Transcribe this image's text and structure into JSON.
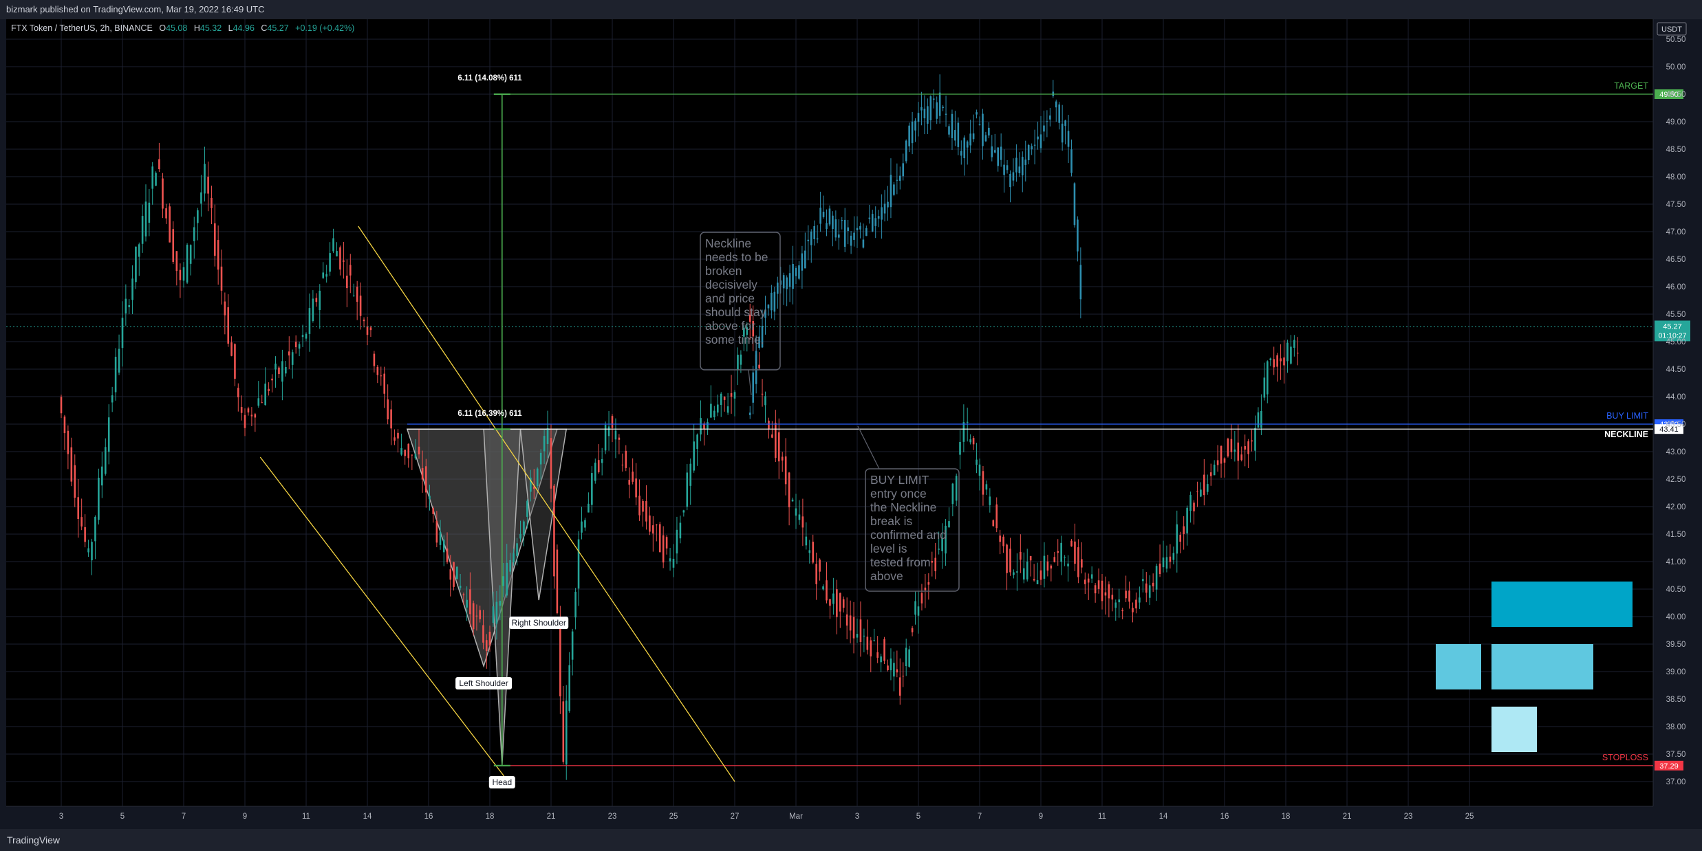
{
  "header": {
    "published": "bizmark published on TradingView.com, Mar 19, 2022 16:49 UTC"
  },
  "legend": {
    "symbol": "FTX Token / TetherUS, 2h, BINANCE",
    "o_label": "O",
    "o": "45.08",
    "h_label": "H",
    "h": "45.32",
    "l_label": "L",
    "l": "44.96",
    "c_label": "C",
    "c": "45.27",
    "change": "+0.19 (+0.42%)"
  },
  "footer": {
    "brand": "TradingView"
  },
  "colors": {
    "bg": "#000000",
    "up": "#26a69a",
    "down": "#ef5350",
    "projection": "#2e8fb0",
    "target": "#4caf50",
    "stop": "#f23645",
    "buylimit": "#2962ff",
    "neckline": "#ffffff",
    "wedge": "#f5d442"
  },
  "chart_data": {
    "type": "candlestick",
    "currency": "USDT",
    "ylim": [
      36.5,
      50.6
    ],
    "yticks": [
      "50.50",
      "50.00",
      "49.50",
      "49.00",
      "48.50",
      "48.00",
      "47.50",
      "47.00",
      "46.50",
      "46.00",
      "45.50",
      "45.00",
      "44.50",
      "44.00",
      "43.50",
      "43.00",
      "42.50",
      "42.00",
      "41.50",
      "41.00",
      "40.50",
      "40.00",
      "39.50",
      "39.00",
      "38.50",
      "38.00",
      "37.50",
      "37.00"
    ],
    "xticks": [
      "3",
      "5",
      "7",
      "9",
      "11",
      "14",
      "16",
      "18",
      "21",
      "23",
      "25",
      "27",
      "Mar",
      "3",
      "5",
      "7",
      "9",
      "11",
      "14",
      "16",
      "18",
      "21",
      "23",
      "25"
    ],
    "price_path": [
      {
        "x": 0.0,
        "y": 44.0
      },
      {
        "x": 1.0,
        "y": 41.0
      },
      {
        "x": 2.0,
        "y": 45.0
      },
      {
        "x": 3.2,
        "y": 48.3
      },
      {
        "x": 4.0,
        "y": 46.0
      },
      {
        "x": 4.8,
        "y": 48.0
      },
      {
        "x": 6.0,
        "y": 43.5
      },
      {
        "x": 7.0,
        "y": 44.3
      },
      {
        "x": 8.0,
        "y": 45.0
      },
      {
        "x": 9.0,
        "y": 46.8
      },
      {
        "x": 10.0,
        "y": 45.5
      },
      {
        "x": 11.0,
        "y": 43.2
      },
      {
        "x": 11.8,
        "y": 42.8
      },
      {
        "x": 12.5,
        "y": 41.3
      },
      {
        "x": 14.0,
        "y": 39.5
      },
      {
        "x": 15.0,
        "y": 41.5
      },
      {
        "x": 16.0,
        "y": 43.3
      },
      {
        "x": 16.5,
        "y": 37.5
      },
      {
        "x": 17.0,
        "y": 41.5
      },
      {
        "x": 18.0,
        "y": 43.5
      },
      {
        "x": 19.0,
        "y": 42.0
      },
      {
        "x": 20.0,
        "y": 41.0
      },
      {
        "x": 21.0,
        "y": 43.5
      },
      {
        "x": 22.0,
        "y": 44.0
      },
      {
        "x": 22.5,
        "y": 45.5
      },
      {
        "x": 23.0,
        "y": 44.0
      },
      {
        "x": 24.0,
        "y": 42.0
      },
      {
        "x": 25.0,
        "y": 40.5
      },
      {
        "x": 26.0,
        "y": 39.8
      },
      {
        "x": 27.0,
        "y": 39.3
      },
      {
        "x": 27.5,
        "y": 38.7
      },
      {
        "x": 28.0,
        "y": 40.2
      },
      {
        "x": 29.0,
        "y": 41.5
      },
      {
        "x": 29.6,
        "y": 43.5
      },
      {
        "x": 30.0,
        "y": 42.8
      },
      {
        "x": 31.0,
        "y": 41.0
      },
      {
        "x": 32.0,
        "y": 40.8
      },
      {
        "x": 33.0,
        "y": 41.2
      },
      {
        "x": 34.0,
        "y": 40.5
      },
      {
        "x": 35.0,
        "y": 40.2
      },
      {
        "x": 36.0,
        "y": 40.8
      },
      {
        "x": 37.0,
        "y": 42.0
      },
      {
        "x": 38.0,
        "y": 43.0
      },
      {
        "x": 39.0,
        "y": 43.0
      },
      {
        "x": 39.5,
        "y": 44.5
      },
      {
        "x": 40.5,
        "y": 45.0
      }
    ],
    "projection_path": [
      {
        "x": 22.5,
        "y": 43.5
      },
      {
        "x": 23.0,
        "y": 45.5
      },
      {
        "x": 24.0,
        "y": 46.2
      },
      {
        "x": 25.0,
        "y": 47.3
      },
      {
        "x": 26.0,
        "y": 46.8
      },
      {
        "x": 27.0,
        "y": 47.5
      },
      {
        "x": 28.0,
        "y": 49.0
      },
      {
        "x": 28.8,
        "y": 49.4
      },
      {
        "x": 29.5,
        "y": 48.5
      },
      {
        "x": 30.0,
        "y": 49.0
      },
      {
        "x": 31.0,
        "y": 48.0
      },
      {
        "x": 32.0,
        "y": 48.6
      },
      {
        "x": 32.5,
        "y": 49.4
      },
      {
        "x": 33.0,
        "y": 48.5
      },
      {
        "x": 33.4,
        "y": 46.0
      }
    ],
    "levels": [
      {
        "label": "TARGET",
        "price": "49.50",
        "value": 49.5,
        "role": "target"
      },
      {
        "label": "BUY LIMIT",
        "price": "43.50",
        "value": 43.5,
        "role": "buylimit"
      },
      {
        "label": "NECKLINE",
        "price": "43.41",
        "value": 43.41,
        "role": "neckline"
      },
      {
        "label": "STOPLOSS",
        "price": "37.29",
        "value": 37.29,
        "role": "stop"
      }
    ],
    "last_price": {
      "price": "45.27",
      "countdown": "01:10:27",
      "value": 45.27
    },
    "measurements": [
      {
        "label": "6.11 (14.08%) 611",
        "from": 43.4,
        "to": 49.5
      },
      {
        "label": "6.11 (16.39%) 611",
        "from": 37.3,
        "to": 43.4
      }
    ],
    "pattern_labels": [
      "Left Shoulder",
      "Head",
      "Right Shoulder"
    ],
    "annotations": [
      "Neckline needs to be broken decisively and price should stay above for some time.",
      "BUY LIMIT entry once the Neckline break is confirmed and level is tested from above"
    ]
  }
}
